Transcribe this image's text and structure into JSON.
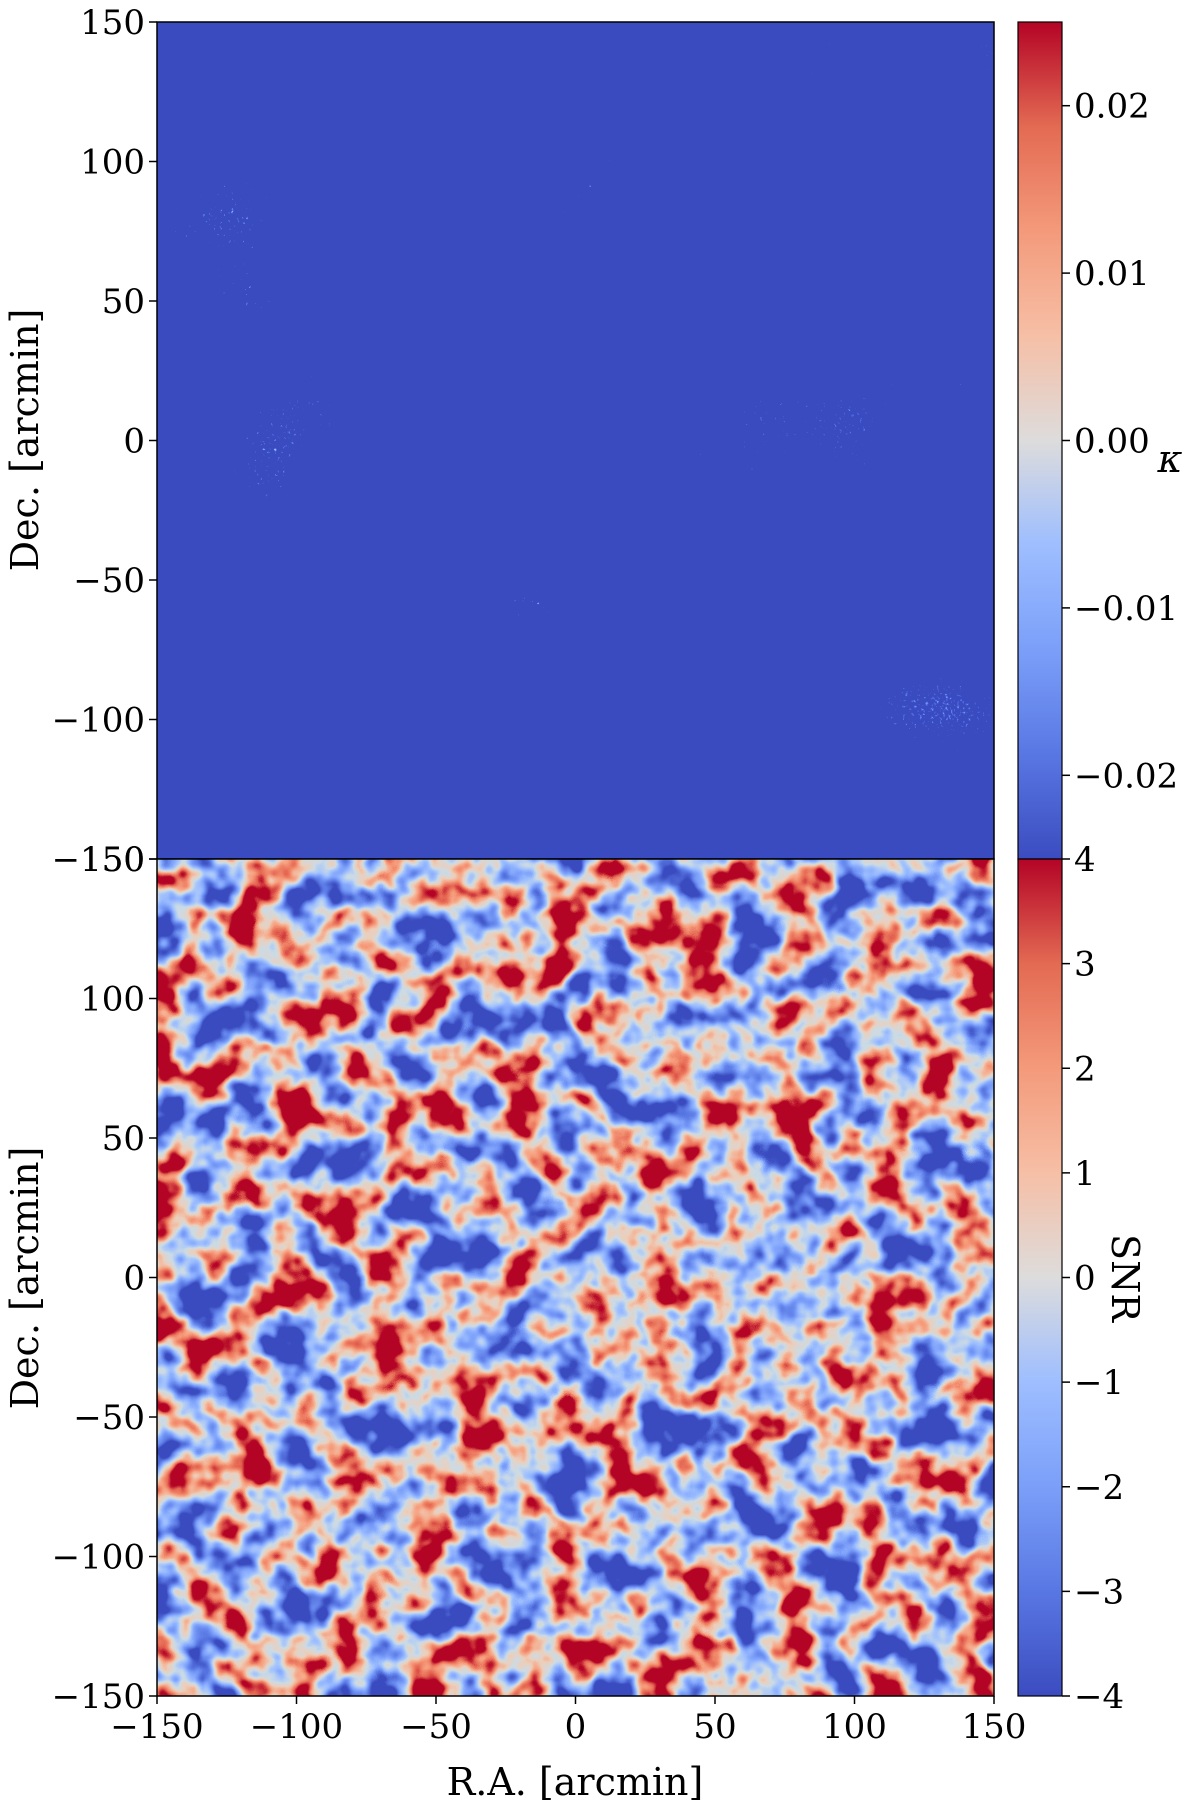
{
  "chart_data": [
    {
      "type": "heatmap",
      "panel": "top",
      "quantity": "convergence map",
      "xlabel": "",
      "ylabel": "Dec.  [arcmin]",
      "xlim": [
        -150,
        150
      ],
      "ylim": [
        -150,
        150
      ],
      "yticks": [
        "150",
        "100",
        "50",
        "0",
        "−50",
        "−100",
        "−150"
      ],
      "ytick_values": [
        150,
        100,
        50,
        0,
        -50,
        -100,
        -150
      ],
      "colorbar": {
        "label": "κ",
        "range": [
          -0.025,
          0.025
        ],
        "ticks": [
          "0.02",
          "0.01",
          "0.00",
          "−0.01",
          "−0.02"
        ],
        "tick_values": [
          0.02,
          0.01,
          0.0,
          -0.01,
          -0.02
        ],
        "colormap": "coolwarm"
      },
      "texture": "fine-grained noisy field, saturated at both ends"
    },
    {
      "type": "heatmap",
      "panel": "bottom",
      "quantity": "signal-to-noise map",
      "xlabel": "R.A.  [arcmin]",
      "ylabel": "Dec.  [arcmin]",
      "xlim": [
        -150,
        150
      ],
      "ylim": [
        -150,
        150
      ],
      "xticks": [
        "−150",
        "−100",
        "−50",
        "0",
        "50",
        "100",
        "150"
      ],
      "xtick_values": [
        -150,
        -100,
        -50,
        0,
        50,
        100,
        150
      ],
      "yticks": [
        "150",
        "100",
        "50",
        "0",
        "−50",
        "−100",
        "−150"
      ],
      "ytick_values": [
        150,
        100,
        50,
        0,
        -50,
        -100,
        -150
      ],
      "colorbar": {
        "label": "SNR",
        "range": [
          -4,
          4
        ],
        "ticks": [
          "4",
          "3",
          "2",
          "1",
          "0",
          "−1",
          "−2",
          "−3",
          "−4"
        ],
        "tick_values": [
          4,
          3,
          2,
          1,
          0,
          -1,
          -2,
          -3,
          -4
        ],
        "colormap": "coolwarm"
      },
      "texture": "smoothed field with blob-like peaks"
    }
  ],
  "colors": {
    "cmap_low": "#3b4cc0",
    "cmap_mid": "#dddddd",
    "cmap_high": "#b40426"
  }
}
